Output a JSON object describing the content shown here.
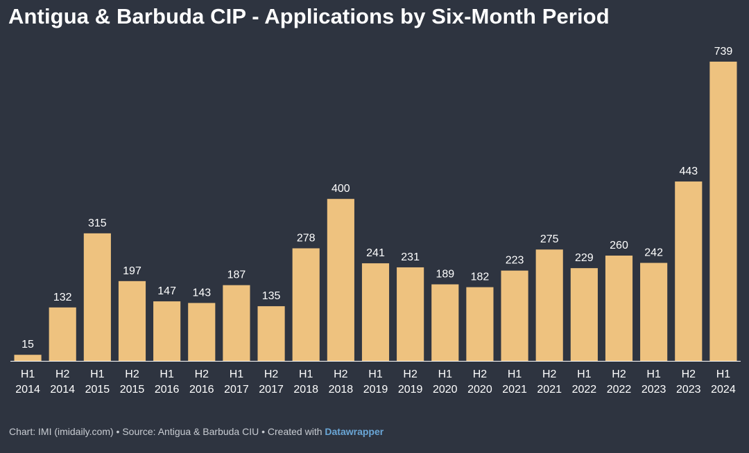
{
  "chart_data": {
    "type": "bar",
    "title": "Antigua & Barbuda CIP - Applications by Six-Month Period",
    "categories": [
      [
        "H1",
        "2014"
      ],
      [
        "H2",
        "2014"
      ],
      [
        "H1",
        "2015"
      ],
      [
        "H2",
        "2015"
      ],
      [
        "H1",
        "2016"
      ],
      [
        "H2",
        "2016"
      ],
      [
        "H1",
        "2017"
      ],
      [
        "H2",
        "2017"
      ],
      [
        "H1",
        "2018"
      ],
      [
        "H2",
        "2018"
      ],
      [
        "H1",
        "2019"
      ],
      [
        "H2",
        "2019"
      ],
      [
        "H1",
        "2020"
      ],
      [
        "H2",
        "2020"
      ],
      [
        "H1",
        "2021"
      ],
      [
        "H2",
        "2021"
      ],
      [
        "H1",
        "2022"
      ],
      [
        "H2",
        "2022"
      ],
      [
        "H1",
        "2023"
      ],
      [
        "H2",
        "2023"
      ],
      [
        "H1",
        "2024"
      ]
    ],
    "values": [
      15,
      132,
      315,
      197,
      147,
      143,
      187,
      135,
      278,
      400,
      241,
      231,
      189,
      182,
      223,
      275,
      229,
      260,
      242,
      443,
      739
    ],
    "xlabel": "",
    "ylabel": "",
    "ylim": [
      0,
      739
    ],
    "grid": false,
    "legend": "none",
    "bar_color": "#eec27f",
    "background_color": "#2e3440",
    "baseline_color": "#ffffff"
  },
  "footer": {
    "prefix": "Chart: IMI (imidaily.com) • Source: Antigua & Barbuda CIU • Created with ",
    "brand": "Datawrapper"
  }
}
